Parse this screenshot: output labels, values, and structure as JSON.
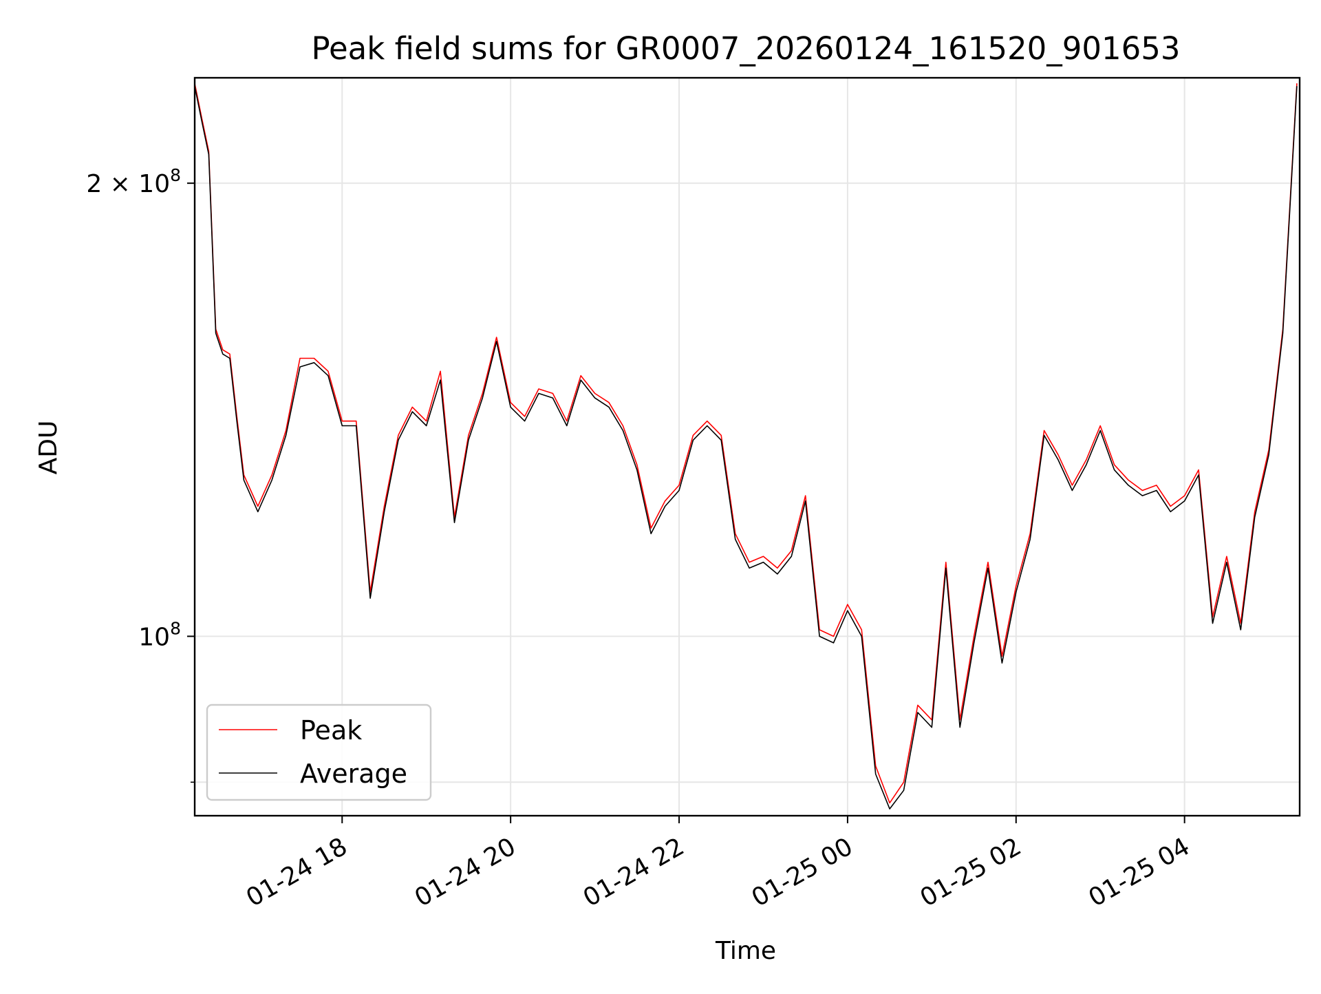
{
  "chart_data": {
    "type": "line",
    "title": "Peak field sums for GR0007_20260124_161520_901653",
    "xlabel": "Time",
    "ylabel": "ADU",
    "y_scale": "log",
    "ylim": [
      76000000,
      235000000
    ],
    "xlim": [
      "2026-01-24 16:15",
      "2026-01-25 05:22"
    ],
    "grid": true,
    "legend_position": "lower-left",
    "x_ticks": [
      {
        "value": "2026-01-24 18:00",
        "label": "01-24 18"
      },
      {
        "value": "2026-01-24 20:00",
        "label": "01-24 20"
      },
      {
        "value": "2026-01-24 22:00",
        "label": "01-24 22"
      },
      {
        "value": "2026-01-25 00:00",
        "label": "01-25 00"
      },
      {
        "value": "2026-01-25 02:00",
        "label": "01-25 02"
      },
      {
        "value": "2026-01-25 04:00",
        "label": "01-25 04"
      }
    ],
    "y_ticks": [
      {
        "value": 200000000,
        "label": "2 × 10",
        "exp": "8"
      },
      {
        "value": 100000000,
        "label": "10",
        "exp": "8"
      }
    ],
    "y_minor_ticks": [
      80000000
    ],
    "x": [
      "2026-01-24 16:15",
      "2026-01-24 16:20",
      "2026-01-24 16:25",
      "2026-01-24 16:30",
      "2026-01-24 16:35",
      "2026-01-24 16:40",
      "2026-01-24 16:45",
      "2026-01-24 16:50",
      "2026-01-24 17:00",
      "2026-01-24 17:10",
      "2026-01-24 17:20",
      "2026-01-24 17:30",
      "2026-01-24 17:40",
      "2026-01-24 17:50",
      "2026-01-24 18:00",
      "2026-01-24 18:10",
      "2026-01-24 18:20",
      "2026-01-24 18:30",
      "2026-01-24 18:40",
      "2026-01-24 18:50",
      "2026-01-24 19:00",
      "2026-01-24 19:10",
      "2026-01-24 19:20",
      "2026-01-24 19:30",
      "2026-01-24 19:40",
      "2026-01-24 19:50",
      "2026-01-24 20:00",
      "2026-01-24 20:10",
      "2026-01-24 20:20",
      "2026-01-24 20:30",
      "2026-01-24 20:40",
      "2026-01-24 20:50",
      "2026-01-24 21:00",
      "2026-01-24 21:10",
      "2026-01-24 21:20",
      "2026-01-24 21:30",
      "2026-01-24 21:40",
      "2026-01-24 21:50",
      "2026-01-24 22:00",
      "2026-01-24 22:10",
      "2026-01-24 22:20",
      "2026-01-24 22:30",
      "2026-01-24 22:40",
      "2026-01-24 22:50",
      "2026-01-24 23:00",
      "2026-01-24 23:10",
      "2026-01-24 23:20",
      "2026-01-24 23:30",
      "2026-01-24 23:40",
      "2026-01-24 23:50",
      "2026-01-25 00:00",
      "2026-01-25 00:10",
      "2026-01-25 00:20",
      "2026-01-25 00:30",
      "2026-01-25 00:40",
      "2026-01-25 00:50",
      "2026-01-25 01:00",
      "2026-01-25 01:10",
      "2026-01-25 01:20",
      "2026-01-25 01:30",
      "2026-01-25 01:40",
      "2026-01-25 01:50",
      "2026-01-25 02:00",
      "2026-01-25 02:10",
      "2026-01-25 02:20",
      "2026-01-25 02:30",
      "2026-01-25 02:40",
      "2026-01-25 02:50",
      "2026-01-25 03:00",
      "2026-01-25 03:10",
      "2026-01-25 03:20",
      "2026-01-25 03:30",
      "2026-01-25 03:40",
      "2026-01-25 03:50",
      "2026-01-25 04:00",
      "2026-01-25 04:10",
      "2026-01-25 04:20",
      "2026-01-25 04:30",
      "2026-01-25 04:40",
      "2026-01-25 04:50",
      "2026-01-25 05:00",
      "2026-01-25 05:10",
      "2026-01-25 05:20"
    ],
    "series": [
      {
        "name": "Peak",
        "color": "#ff0000",
        "values": [
          233000000,
          221000000,
          210000000,
          160000000,
          155000000,
          154000000,
          140000000,
          128000000,
          122000000,
          128000000,
          137000000,
          153000000,
          153000000,
          150000000,
          139000000,
          139000000,
          107000000,
          122000000,
          136000000,
          142000000,
          139000000,
          150000000,
          120000000,
          136000000,
          145000000,
          158000000,
          143000000,
          140000000,
          146000000,
          145000000,
          139000000,
          149000000,
          145000000,
          143000000,
          138000000,
          130000000,
          118000000,
          123000000,
          126000000,
          136000000,
          139000000,
          136000000,
          117000000,
          112000000,
          113000000,
          111000000,
          114000000,
          124000000,
          101000000,
          100000000,
          105000000,
          101000000,
          82000000,
          77500000,
          80000000,
          90000000,
          88000000,
          112000000,
          88000000,
          100000000,
          112000000,
          97000000,
          108000000,
          117000000,
          137000000,
          132000000,
          126000000,
          131000000,
          138000000,
          130000000,
          127000000,
          125000000,
          126000000,
          122000000,
          124000000,
          129000000,
          103000000,
          113000000,
          102000000,
          121000000,
          133000000,
          160000000,
          233000000
        ]
      },
      {
        "name": "Average",
        "color": "#000000",
        "values": [
          232000000,
          220000000,
          209000000,
          159000000,
          154000000,
          153000000,
          139000000,
          127000000,
          121000000,
          127000000,
          136000000,
          151000000,
          152000000,
          149000000,
          138000000,
          138000000,
          106000000,
          121000000,
          135000000,
          141000000,
          138000000,
          148000000,
          119000000,
          135000000,
          144000000,
          157000000,
          142000000,
          139000000,
          145000000,
          144000000,
          138000000,
          148000000,
          144000000,
          142000000,
          137000000,
          129000000,
          117000000,
          122000000,
          125000000,
          135000000,
          138000000,
          135000000,
          116000000,
          111000000,
          112000000,
          110000000,
          113000000,
          123000000,
          100000000,
          99000000,
          104000000,
          100000000,
          81000000,
          76800000,
          79000000,
          89000000,
          87000000,
          111000000,
          87000000,
          99000000,
          111000000,
          96000000,
          107000000,
          116000000,
          136000000,
          131000000,
          125000000,
          130000000,
          137000000,
          129000000,
          126000000,
          124000000,
          125000000,
          121000000,
          123000000,
          128000000,
          102000000,
          112000000,
          101000000,
          120000000,
          132000000,
          159000000,
          232000000
        ]
      }
    ]
  }
}
